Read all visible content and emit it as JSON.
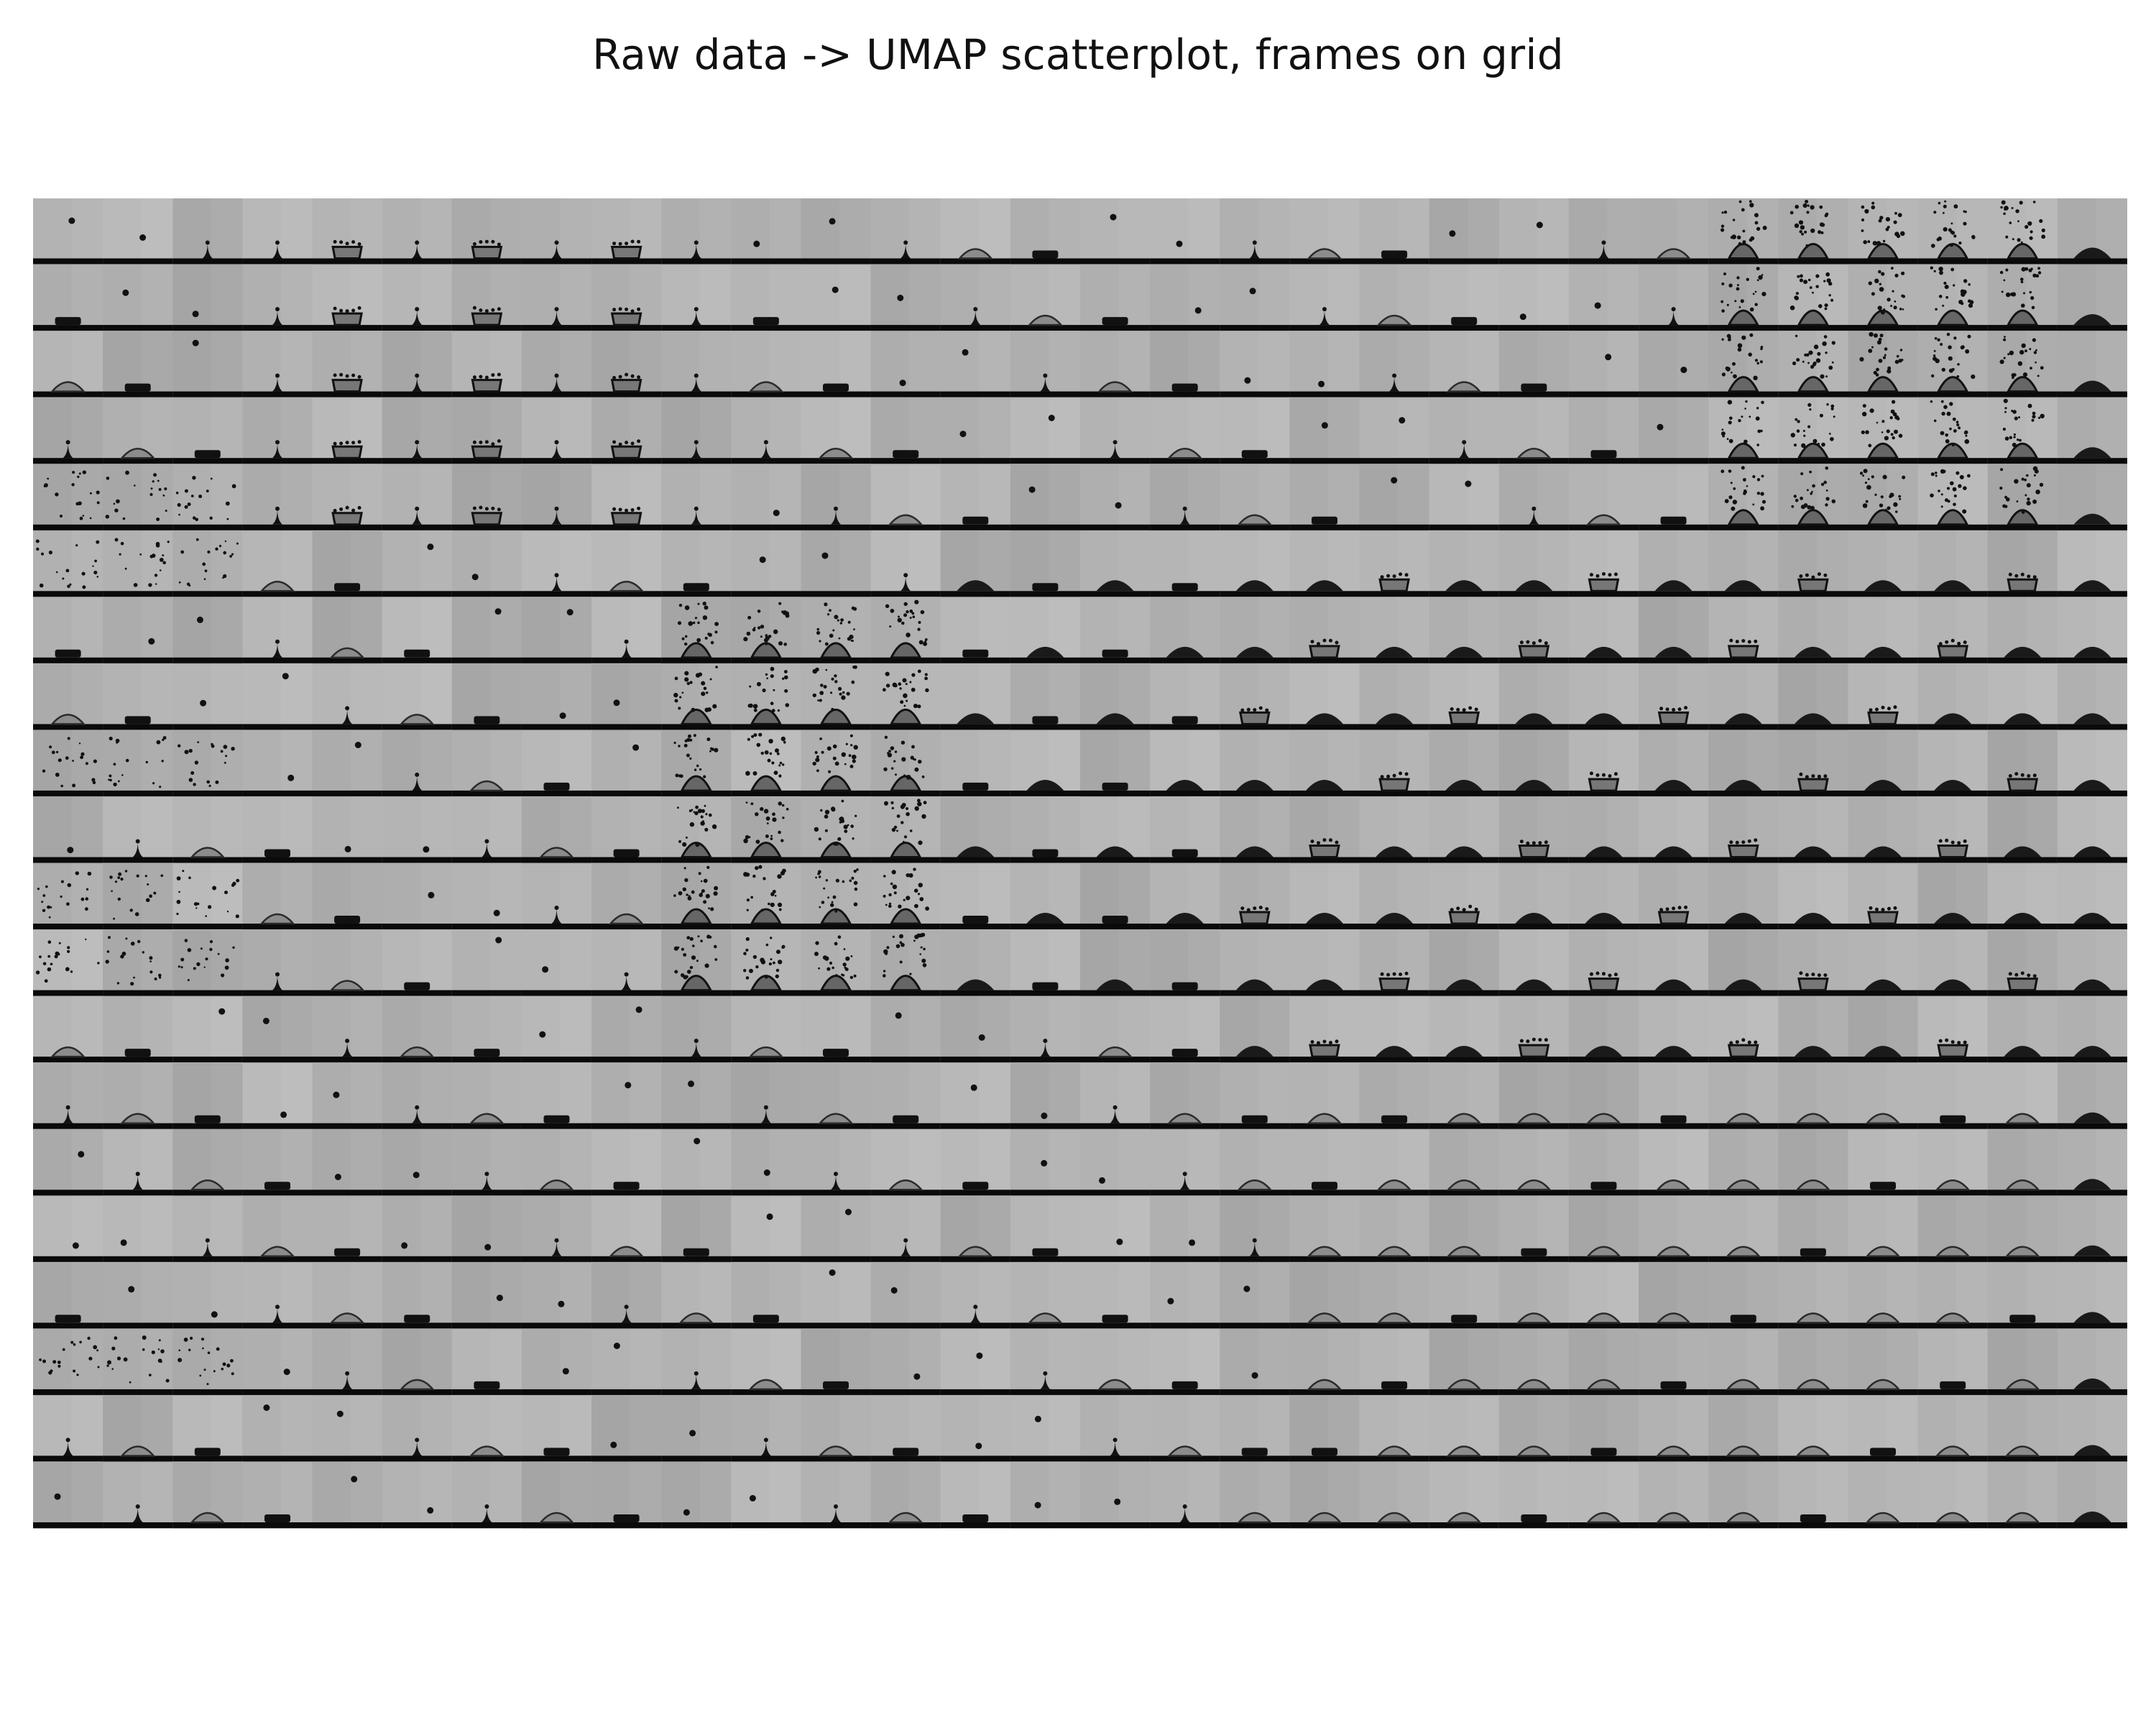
{
  "title": "Raw data -> UMAP scatterplot, frames on grid",
  "grid": {
    "rows": 20,
    "cols": 30,
    "image_type": "grayscale high-speed video frames of droplet impacts",
    "colors": {
      "frame_light": "#b0b0b0",
      "frame_dark": "#999999",
      "substrate": "#0a0a0a",
      "droplet": "#111111"
    }
  },
  "motifs": [
    "drop-falling",
    "jet-spike",
    "crown-splash",
    "spray-splash",
    "lamella-rim",
    "dome",
    "flat-puddle",
    "scattered-droplets"
  ]
}
